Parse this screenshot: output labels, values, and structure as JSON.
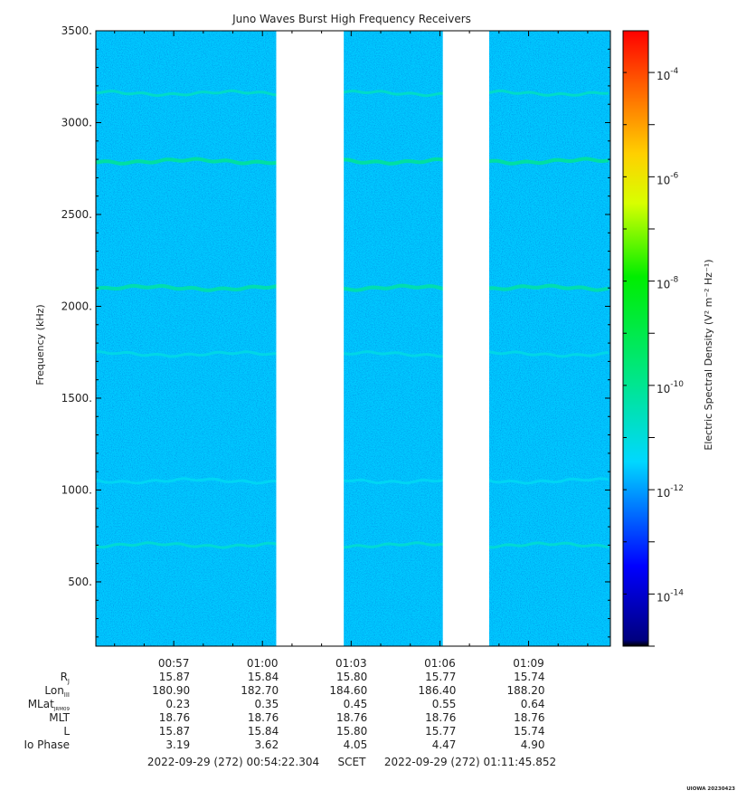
{
  "chart_data": {
    "type": "heatmap",
    "title": "Juno Waves Burst High Frequency Receivers",
    "ylabel": "Frequency (kHz)",
    "colorbar_label": "Electric Spectral Density (V² m⁻² Hz⁻¹)",
    "ylim": [
      150,
      3500
    ],
    "y_ticks": [
      {
        "value": 500,
        "label": "500."
      },
      {
        "value": 1000,
        "label": "1000."
      },
      {
        "value": 1500,
        "label": "1500."
      },
      {
        "value": 2000,
        "label": "2000."
      },
      {
        "value": 2500,
        "label": "2500."
      },
      {
        "value": 3000,
        "label": "3000."
      },
      {
        "value": 3500,
        "label": "3500."
      }
    ],
    "time_range": [
      "00:54:22",
      "01:11:46"
    ],
    "x_ticks": [
      "00:57",
      "01:00",
      "01:03",
      "01:06",
      "01:09"
    ],
    "data_gaps": [
      [
        "01:00:28",
        "01:02:45"
      ],
      [
        "01:06:06",
        "01:07:40"
      ]
    ],
    "colorbar_exponents": [
      -4,
      -6,
      -8,
      -10,
      -12,
      -14
    ],
    "colorbar_range_log10": [
      -15,
      -3.2
    ],
    "background_level_log10": -11.6,
    "emission_lines": [
      {
        "freq_khz": 3160,
        "level_log10": -10.6
      },
      {
        "freq_khz": 2790,
        "level_log10": -10.0
      },
      {
        "freq_khz": 2100,
        "level_log10": -10.2
      },
      {
        "freq_khz": 1740,
        "level_log10": -11.1
      },
      {
        "freq_khz": 1050,
        "level_log10": -11.3
      },
      {
        "freq_khz": 700,
        "level_log10": -10.8
      }
    ]
  },
  "ephemeris": {
    "rows": [
      {
        "label": "R",
        "sub": "J",
        "values": [
          "15.87",
          "15.84",
          "15.80",
          "15.77",
          "15.74"
        ]
      },
      {
        "label": "Lon",
        "sub": "III",
        "values": [
          "180.90",
          "182.70",
          "184.60",
          "186.40",
          "188.20"
        ]
      },
      {
        "label": "MLat",
        "sub": "JRM09",
        "values": [
          "0.23",
          "0.35",
          "0.45",
          "0.55",
          "0.64"
        ]
      },
      {
        "label": "MLT",
        "sub": "",
        "values": [
          "18.76",
          "18.76",
          "18.76",
          "18.76",
          "18.76"
        ]
      },
      {
        "label": "L",
        "sub": "",
        "values": [
          "15.87",
          "15.84",
          "15.80",
          "15.77",
          "15.74"
        ]
      },
      {
        "label": "Io Phase",
        "sub": "",
        "values": [
          "3.19",
          "3.62",
          "4.05",
          "4.47",
          "4.90"
        ]
      }
    ]
  },
  "footer": {
    "start": "2022-09-29 (272) 00:54:22.304",
    "scet": "SCET",
    "end": "2022-09-29 (272) 01:11:45.852"
  },
  "stamp": "UIOWA 20230423"
}
